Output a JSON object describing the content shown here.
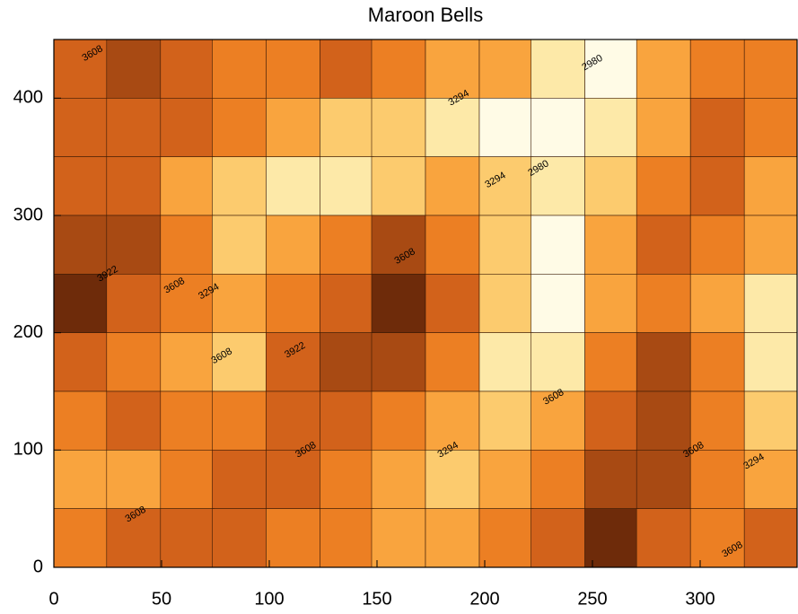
{
  "chart_data": {
    "type": "contour",
    "title": "Maroon Bells",
    "xlim": [
      0,
      345
    ],
    "ylim": [
      0,
      450
    ],
    "xticks": [
      0,
      50,
      100,
      150,
      200,
      250,
      300
    ],
    "yticks": [
      0,
      100,
      200,
      300,
      400
    ],
    "x": [
      12,
      37,
      62,
      86,
      111,
      136,
      160,
      185,
      210,
      234,
      259,
      283,
      308,
      333
    ],
    "y": [
      425,
      375,
      325,
      275,
      225,
      175,
      125,
      75,
      25
    ],
    "z": [
      [
        3700,
        3800,
        3650,
        3600,
        3500,
        3650,
        3500,
        3400,
        3300,
        3050,
        2900,
        3400,
        3600,
        3500
      ],
      [
        3650,
        3700,
        3750,
        3550,
        3400,
        3250,
        3150,
        3050,
        2950,
        2900,
        3100,
        3450,
        3650,
        3550
      ],
      [
        3750,
        3700,
        3450,
        3200,
        3050,
        3100,
        3250,
        3350,
        3250,
        3000,
        3250,
        3550,
        3700,
        3400
      ],
      [
        3900,
        3800,
        3500,
        3250,
        3350,
        3600,
        3800,
        3550,
        3150,
        2950,
        3300,
        3650,
        3550,
        3300
      ],
      [
        3950,
        3750,
        3550,
        3300,
        3550,
        3750,
        3950,
        3650,
        3150,
        2950,
        3350,
        3600,
        3450,
        3100
      ],
      [
        3700,
        3550,
        3350,
        3200,
        3650,
        3850,
        3800,
        3500,
        3100,
        3100,
        3500,
        3800,
        3500,
        3050
      ],
      [
        3550,
        3650,
        3600,
        3500,
        3650,
        3750,
        3550,
        3300,
        3200,
        3450,
        3750,
        3850,
        3600,
        3200
      ],
      [
        3350,
        3400,
        3550,
        3750,
        3650,
        3600,
        3450,
        3250,
        3350,
        3600,
        3900,
        3800,
        3550,
        3350
      ],
      [
        3500,
        3650,
        3750,
        3700,
        3600,
        3500,
        3400,
        3450,
        3550,
        3700,
        3950,
        3750,
        3550,
        3700
      ]
    ],
    "levels": [
      2980,
      3137,
      3294,
      3451,
      3608,
      3765,
      3922
    ],
    "colors": [
      "#fffbe6",
      "#fde9a8",
      "#fccb6e",
      "#f9a43e",
      "#ec7f23",
      "#d2621b",
      "#a84a13",
      "#6e2b0a"
    ],
    "annotations": [
      {
        "text": 3608,
        "x": 18,
        "y": 438
      },
      {
        "text": 2980,
        "x": 250,
        "y": 430
      },
      {
        "text": 3294,
        "x": 188,
        "y": 400
      },
      {
        "text": 3922,
        "x": 25,
        "y": 250
      },
      {
        "text": 3608,
        "x": 56,
        "y": 240
      },
      {
        "text": 3294,
        "x": 72,
        "y": 235
      },
      {
        "text": 3294,
        "x": 205,
        "y": 330
      },
      {
        "text": 2980,
        "x": 225,
        "y": 340
      },
      {
        "text": 3608,
        "x": 163,
        "y": 265
      },
      {
        "text": 3922,
        "x": 112,
        "y": 185
      },
      {
        "text": 3608,
        "x": 78,
        "y": 180
      },
      {
        "text": 3608,
        "x": 232,
        "y": 145
      },
      {
        "text": 3294,
        "x": 183,
        "y": 100
      },
      {
        "text": 3608,
        "x": 117,
        "y": 100
      },
      {
        "text": 3608,
        "x": 38,
        "y": 45
      },
      {
        "text": 3608,
        "x": 297,
        "y": 100
      },
      {
        "text": 3294,
        "x": 325,
        "y": 90
      },
      {
        "text": 3608,
        "x": 315,
        "y": 15
      }
    ]
  }
}
